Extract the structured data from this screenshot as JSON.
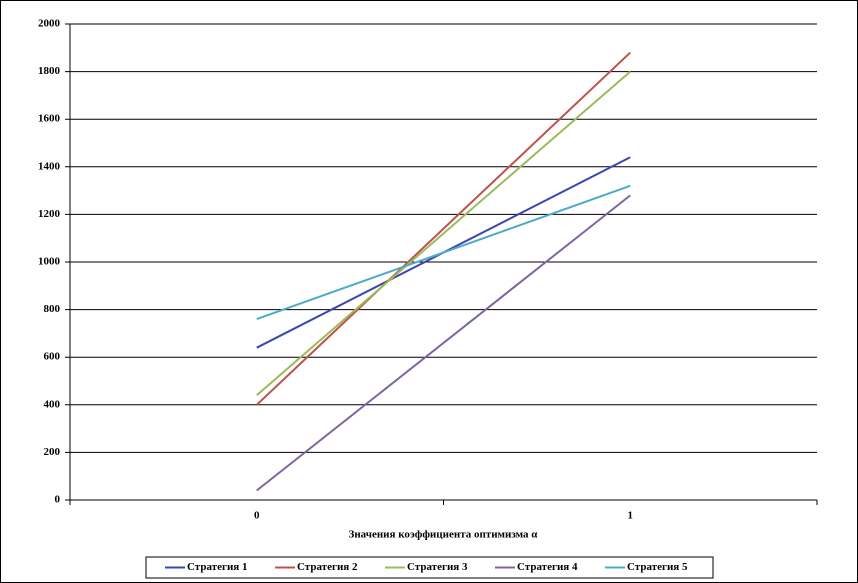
{
  "chart_data": {
    "type": "line",
    "x_label": "Значения коэффициента оптимизма α",
    "categories": [
      "0",
      "1"
    ],
    "series": [
      {
        "name": "Стратегия 1",
        "color": "#3c46b0",
        "values": [
          640,
          1440
        ]
      },
      {
        "name": "Стратегия 2",
        "color": "#c0504d",
        "values": [
          400,
          1880
        ]
      },
      {
        "name": "Стратегия 3",
        "color": "#9bbb59",
        "values": [
          440,
          1800
        ]
      },
      {
        "name": "Стратегия 4",
        "color": "#8064a2",
        "values": [
          40,
          1280
        ]
      },
      {
        "name": "Стратегия 5",
        "color": "#4bacc6",
        "values": [
          760,
          1320
        ]
      }
    ],
    "ylim": [
      0,
      2000
    ],
    "yticks": [
      0,
      200,
      400,
      600,
      800,
      1000,
      1200,
      1400,
      1600,
      1800,
      2000
    ],
    "grid": true,
    "legend": "bottom"
  }
}
